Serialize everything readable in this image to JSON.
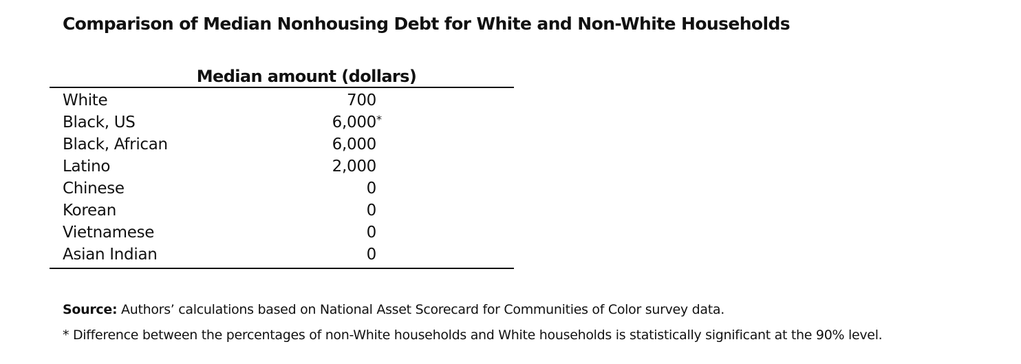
{
  "title": "Comparison of Median Nonhousing Debt for White and Non-White Households",
  "table": {
    "column_header": "Median amount (dollars)",
    "rows": [
      {
        "label": "White",
        "value": "700",
        "note": ""
      },
      {
        "label": "Black, US",
        "value": "6,000",
        "note": "*"
      },
      {
        "label": "Black, African",
        "value": "6,000",
        "note": ""
      },
      {
        "label": "Latino",
        "value": "2,000",
        "note": ""
      },
      {
        "label": "Chinese",
        "value": "0",
        "note": ""
      },
      {
        "label": "Korean",
        "value": "0",
        "note": ""
      },
      {
        "label": "Vietnamese",
        "value": "0",
        "note": ""
      },
      {
        "label": "Asian Indian",
        "value": "0",
        "note": ""
      }
    ]
  },
  "notes": {
    "source_label": "Source:",
    "source_text": " Authors’ calculations based on National Asset Scorecard for Communities of Color survey data.",
    "footnote": "* Difference between the percentages of non-White households and White households is statistically significant at the 90% level."
  }
}
